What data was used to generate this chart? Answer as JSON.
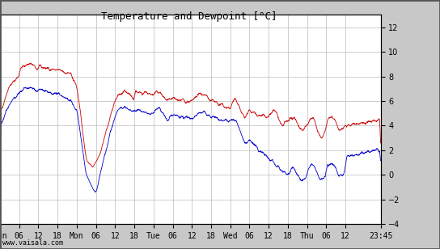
{
  "title": "Temperature and Dewpoint [°C]",
  "watermark": "www.vaisala.com",
  "ylim": [
    -4,
    13
  ],
  "yticks": [
    -4,
    -2,
    0,
    2,
    4,
    6,
    8,
    10,
    12
  ],
  "xlim": [
    0,
    119
  ],
  "xtick_positions": [
    0,
    6,
    12,
    18,
    24,
    30,
    36,
    42,
    48,
    54,
    60,
    66,
    72,
    78,
    84,
    90,
    96,
    102,
    108,
    119
  ],
  "xtick_labels": [
    "Sun",
    "06",
    "12",
    "18",
    "Mon",
    "06",
    "12",
    "18",
    "Tue",
    "06",
    "12",
    "18",
    "Wed",
    "06",
    "12",
    "18",
    "Thu",
    "06",
    "12",
    "23:45"
  ],
  "bg_color": "#c8c8c8",
  "plot_bg_color": "#ffffff",
  "grid_color": "#bbbbbb",
  "temp_color": "#cc0000",
  "dewp_color": "#0000cc",
  "line_width": 0.6,
  "title_fontsize": 9,
  "tick_fontsize": 7,
  "watermark_fontsize": 6,
  "noise_scale": 0.25
}
